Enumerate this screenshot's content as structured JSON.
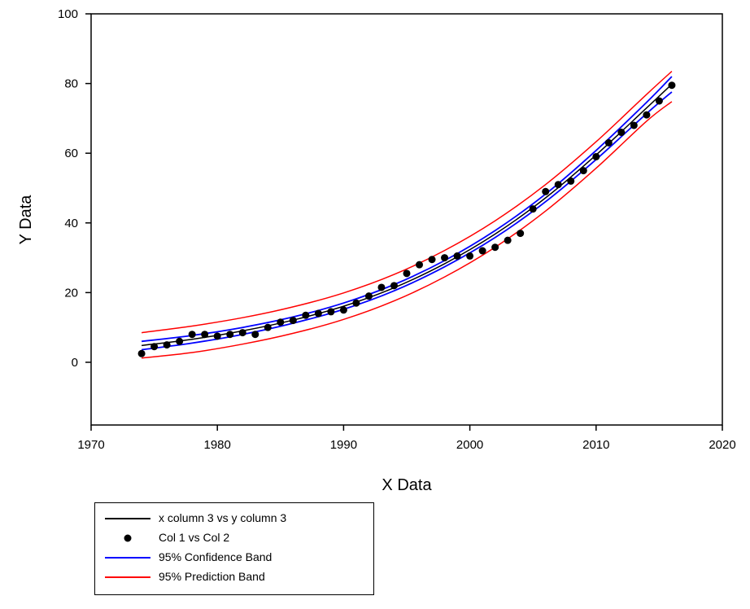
{
  "chart_data": {
    "type": "scatter",
    "xlabel": "X Data",
    "ylabel": "Y Data",
    "xlim": [
      1970,
      2020
    ],
    "ylim": [
      -18,
      100
    ],
    "x_ticks": [
      1970,
      1980,
      1990,
      2000,
      2010,
      2020
    ],
    "y_ticks": [
      0,
      20,
      40,
      60,
      80,
      100
    ],
    "grid": false,
    "legend_position": "bottom-left, below plot",
    "points": {
      "name": "Col 1 vs Col 2",
      "color": "#000000",
      "x": [
        1974,
        1975,
        1976,
        1977,
        1978,
        1979,
        1980,
        1981,
        1982,
        1983,
        1984,
        1985,
        1986,
        1987,
        1988,
        1989,
        1990,
        1991,
        1992,
        1993,
        1994,
        1995,
        1996,
        1997,
        1998,
        1999,
        2000,
        2001,
        2002,
        2003,
        2004,
        2005,
        2006,
        2007,
        2008,
        2009,
        2010,
        2011,
        2012,
        2013,
        2014,
        2015,
        2016
      ],
      "y": [
        2.5,
        4.5,
        5,
        6,
        8,
        8,
        7.5,
        8,
        8.5,
        8,
        10,
        11.5,
        12,
        13.5,
        14,
        14.5,
        15,
        17,
        19,
        21.5,
        22,
        25.5,
        28,
        29.5,
        30,
        30.5,
        30.5,
        32,
        33,
        35,
        37,
        44,
        49,
        51,
        52,
        55,
        59,
        63,
        66,
        68,
        71,
        75,
        79.5
      ]
    },
    "fit": {
      "name": "x column 3 vs y column 3",
      "color": "#000000",
      "x": [
        1974,
        1978,
        1982,
        1986,
        1990,
        1994,
        1998,
        2002,
        2006,
        2010,
        2014,
        2016
      ],
      "y": [
        4.8,
        6.6,
        9.0,
        12.1,
        16.1,
        21.4,
        28.3,
        36.8,
        47.2,
        59.5,
        73.0,
        79.8
      ]
    },
    "confidence_band": {
      "name": "95% Confidence Band",
      "color": "#0000ff",
      "x": [
        1974,
        1978,
        1982,
        1986,
        1990,
        1994,
        1998,
        2002,
        2006,
        2010,
        2014,
        2016
      ],
      "upper": [
        6.0,
        7.7,
        10.0,
        13.0,
        17.0,
        22.3,
        29.2,
        37.8,
        48.3,
        60.8,
        74.6,
        82.0
      ],
      "lower": [
        3.6,
        5.5,
        8.0,
        11.2,
        15.2,
        20.5,
        27.4,
        35.8,
        46.1,
        58.2,
        71.4,
        77.6
      ]
    },
    "prediction_band": {
      "name": "95% Prediction Band",
      "color": "#ff0000",
      "x": [
        1974,
        1978,
        1982,
        1986,
        1990,
        1994,
        1998,
        2002,
        2006,
        2010,
        2014,
        2016
      ],
      "upper": [
        8.5,
        10.4,
        12.8,
        15.9,
        19.9,
        25.2,
        32.1,
        40.6,
        51.0,
        63.3,
        76.9,
        83.5
      ],
      "lower": [
        1.2,
        2.8,
        5.2,
        8.3,
        12.3,
        17.6,
        24.5,
        33.0,
        43.4,
        55.7,
        69.2,
        74.8
      ]
    }
  },
  "legend": {
    "items": [
      {
        "label": "x column 3 vs y column 3",
        "kind": "line",
        "color": "#000000"
      },
      {
        "label": "Col 1 vs Col 2",
        "kind": "marker",
        "color": "#000000"
      },
      {
        "label": "95% Confidence Band",
        "kind": "line",
        "color": "#0000ff"
      },
      {
        "label": "95% Prediction Band",
        "kind": "line",
        "color": "#ff0000"
      }
    ]
  }
}
